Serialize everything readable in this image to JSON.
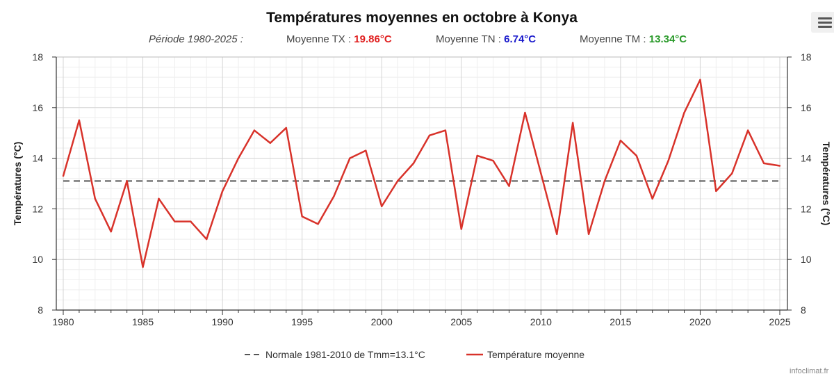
{
  "header": {
    "title": "Températures moyennes en octobre à Konya",
    "period": "Période 1980-2025 :",
    "tx_label": "Moyenne TX : ",
    "tx_value": "19.86°C",
    "tn_label": "Moyenne TN : ",
    "tn_value": "6.74°C",
    "tm_label": "Moyenne TM : ",
    "tm_value": "13.34°C"
  },
  "colors": {
    "tx": "#e02020",
    "tn": "#1a1acc",
    "tm": "#2a9a2a",
    "series": "#d8322a",
    "normal": "#555555"
  },
  "menu_icon": "hamburger-menu-icon",
  "credit": "infoclimat.fr",
  "chart_data": {
    "type": "line",
    "title": "Températures moyennes en octobre à Konya",
    "ylabel_left": "Températures (°C)",
    "ylabel_right": "Températures (°C)",
    "xlim": [
      1980,
      2025
    ],
    "ylim": [
      8,
      18
    ],
    "x_ticks": [
      1980,
      1985,
      1990,
      1995,
      2000,
      2005,
      2010,
      2015,
      2020,
      2025
    ],
    "y_ticks": [
      8,
      10,
      12,
      14,
      16,
      18
    ],
    "grid": true,
    "legend_position": "bottom",
    "x": [
      1980,
      1981,
      1982,
      1983,
      1984,
      1985,
      1986,
      1987,
      1988,
      1989,
      1990,
      1991,
      1992,
      1993,
      1994,
      1995,
      1996,
      1997,
      1998,
      1999,
      2000,
      2001,
      2002,
      2003,
      2004,
      2005,
      2006,
      2007,
      2008,
      2009,
      2010,
      2011,
      2012,
      2013,
      2014,
      2015,
      2016,
      2017,
      2018,
      2019,
      2020,
      2021,
      2022,
      2023,
      2024,
      2025
    ],
    "series": [
      {
        "name": "Température moyenne",
        "values": [
          13.3,
          15.5,
          12.4,
          11.1,
          13.1,
          9.7,
          12.4,
          11.5,
          11.5,
          10.8,
          12.7,
          14.0,
          15.1,
          14.6,
          15.2,
          11.7,
          11.4,
          12.5,
          14.0,
          14.3,
          12.1,
          13.1,
          13.8,
          14.9,
          15.1,
          11.2,
          14.1,
          13.9,
          12.9,
          15.8,
          13.4,
          11.0,
          15.4,
          11.0,
          13.1,
          14.7,
          14.1,
          12.4,
          13.9,
          15.8,
          17.1,
          12.7,
          13.4,
          15.1,
          13.8,
          13.7
        ]
      }
    ],
    "reference_line": {
      "name": "Normale 1981-2010 de Tmm=13.1°C",
      "value": 13.1
    }
  }
}
